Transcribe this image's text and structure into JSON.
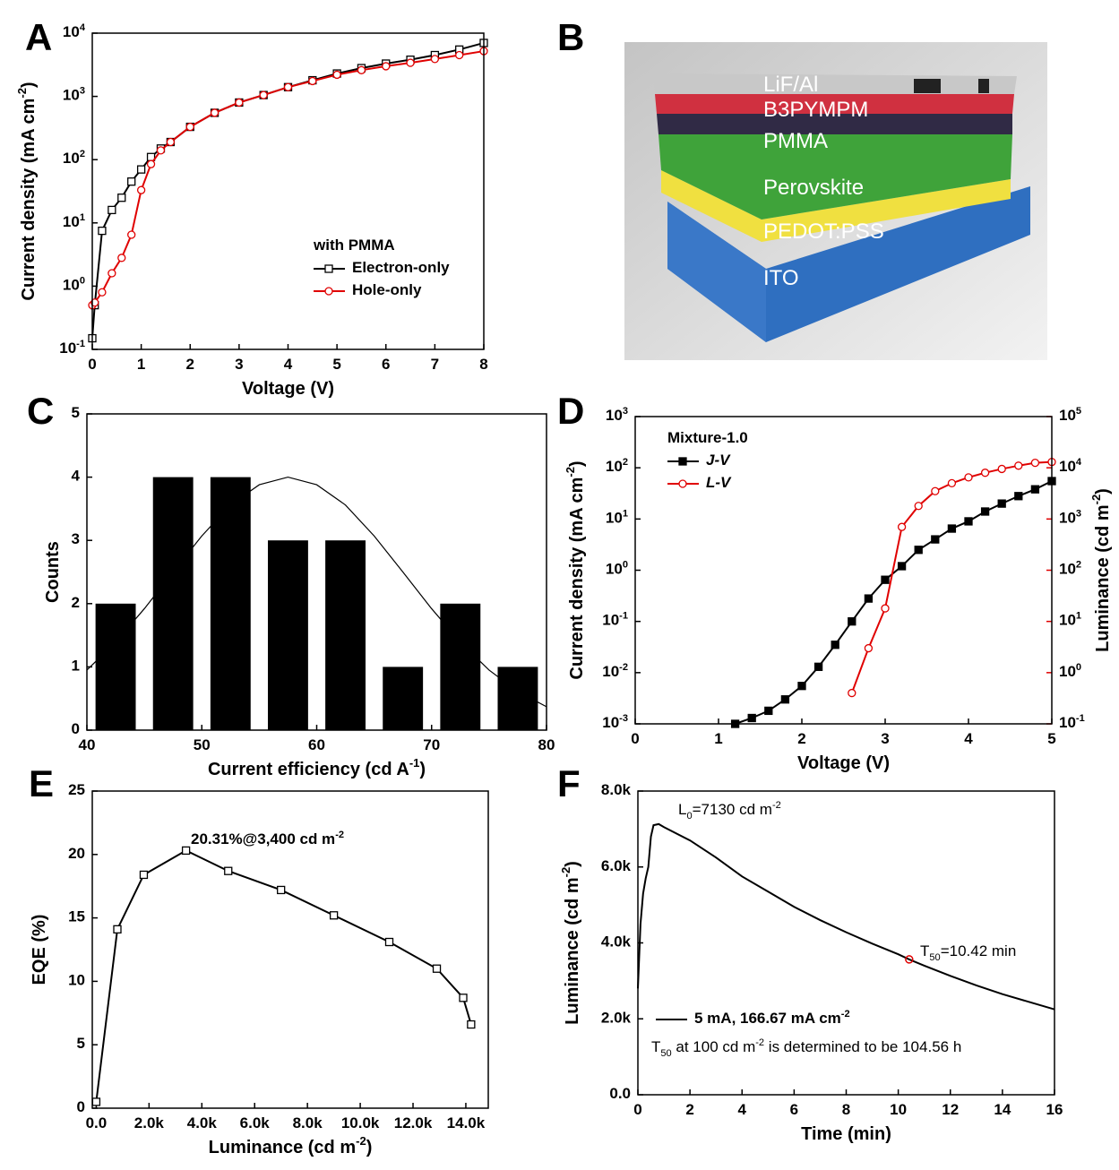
{
  "chart_data": [
    {
      "panel": "A",
      "type": "line",
      "ylog": true,
      "xlabel": "Voltage (V)",
      "ylabel": "Current density (mA cm^{-2})",
      "xlim": [
        0,
        8
      ],
      "xticks": [
        0,
        1,
        2,
        3,
        4,
        5,
        6,
        7,
        8
      ],
      "ylim": [
        0.1,
        10000
      ],
      "yticks": [
        {
          "value": 0.1,
          "label": "10^{-1}"
        },
        {
          "value": 1,
          "label": "10^{0}"
        },
        {
          "value": 10,
          "label": "10^{1}"
        },
        {
          "value": 100,
          "label": "10^{2}"
        },
        {
          "value": 1000,
          "label": "10^{3}"
        },
        {
          "value": 10000,
          "label": "10^{4}"
        }
      ],
      "legend_title": "with PMMA",
      "x": [
        0,
        0.05,
        0.2,
        0.4,
        0.6,
        0.8,
        1.0,
        1.2,
        1.4,
        1.6,
        2,
        2.5,
        3,
        3.5,
        4,
        4.5,
        5,
        5.5,
        6,
        6.5,
        7,
        7.5,
        8
      ],
      "series": [
        {
          "name": "Electron-only",
          "color": "#000000",
          "marker": "square",
          "values": [
            0.15,
            0.5,
            7.5,
            16,
            25,
            45,
            70,
            110,
            150,
            190,
            330,
            550,
            800,
            1050,
            1400,
            1800,
            2300,
            2800,
            3300,
            3800,
            4500,
            5500,
            7000
          ]
        },
        {
          "name": "Hole-only",
          "color": "#e00000",
          "marker": "circle",
          "values": [
            0.5,
            0.55,
            0.8,
            1.6,
            2.8,
            6.5,
            33,
            85,
            140,
            190,
            330,
            550,
            800,
            1050,
            1400,
            1750,
            2200,
            2600,
            3000,
            3400,
            3900,
            4500,
            5200
          ]
        }
      ]
    },
    {
      "panel": "C",
      "type": "histogram",
      "xlabel": "Current efficiency (cd A^{-1})",
      "ylabel": "Counts",
      "xlim": [
        40,
        80
      ],
      "xticks": [
        40,
        50,
        60,
        70,
        80
      ],
      "ylim": [
        0,
        5
      ],
      "yticks": [
        0,
        1,
        2,
        3,
        4,
        5
      ],
      "bins": [
        40,
        45,
        50,
        55,
        60,
        65,
        70,
        75,
        80
      ],
      "counts": [
        2,
        4,
        4,
        3,
        3,
        1,
        2,
        1
      ],
      "color": "#000000",
      "fit": {
        "x": [
          40,
          42.5,
          45,
          47.5,
          50,
          52.5,
          55,
          57.5,
          60,
          62.5,
          65,
          67.5,
          70,
          72.5,
          75,
          77.5,
          80
        ],
        "values": [
          0.95,
          1.39,
          1.92,
          2.5,
          3.07,
          3.56,
          3.88,
          4,
          3.88,
          3.56,
          3.07,
          2.5,
          1.92,
          1.39,
          0.95,
          0.61,
          0.37
        ]
      }
    },
    {
      "panel": "D",
      "type": "line",
      "ylog": true,
      "y2log": true,
      "xlabel": "Voltage (V)",
      "ylabel": "Current density (mA cm^{-2})",
      "y2label": "Luminance (cd m^{-2})",
      "y2color": "#e00000",
      "xlim": [
        0,
        5
      ],
      "xticks": [
        0,
        1,
        2,
        3,
        4,
        5
      ],
      "ylim": [
        0.001,
        1000
      ],
      "yticks": [
        {
          "value": 0.001,
          "label": "10^{-3}"
        },
        {
          "value": 0.01,
          "label": "10^{-2}"
        },
        {
          "value": 0.1,
          "label": "10^{-1}"
        },
        {
          "value": 1,
          "label": "10^{0}"
        },
        {
          "value": 10,
          "label": "10^{1}"
        },
        {
          "value": 100,
          "label": "10^{2}"
        },
        {
          "value": 1000,
          "label": "10^{3}"
        }
      ],
      "y2lim": [
        0.1,
        100000
      ],
      "y2ticks": [
        {
          "value": 0.1,
          "label": "10^{-1}"
        },
        {
          "value": 1,
          "label": "10^{0}"
        },
        {
          "value": 10,
          "label": "10^{1}"
        },
        {
          "value": 100,
          "label": "10^{2}"
        },
        {
          "value": 1000,
          "label": "10^{3}"
        },
        {
          "value": 10000,
          "label": "10^{4}"
        },
        {
          "value": 100000,
          "label": "10^{5}"
        }
      ],
      "legend_title": "Mixture-1.0",
      "series": [
        {
          "name": "J-V",
          "color": "#000000",
          "marker": "filled-square",
          "x": [
            1.2,
            1.4,
            1.6,
            1.8,
            2.0,
            2.2,
            2.4,
            2.6,
            2.8,
            3.0,
            3.2,
            3.4,
            3.6,
            3.8,
            4.0,
            4.2,
            4.4,
            4.6,
            4.8,
            5.0
          ],
          "values": [
            0.001,
            0.0013,
            0.0018,
            0.003,
            0.0055,
            0.013,
            0.035,
            0.1,
            0.28,
            0.65,
            1.2,
            2.5,
            4,
            6.5,
            9,
            14,
            20,
            28,
            38,
            55
          ]
        },
        {
          "name": "L-V",
          "color": "#e00000",
          "marker": "circle",
          "axis": "y2",
          "x": [
            2.6,
            2.8,
            3.0,
            3.2,
            3.4,
            3.6,
            3.8,
            4.0,
            4.2,
            4.4,
            4.6,
            4.8,
            5.0
          ],
          "values": [
            0.4,
            3,
            18,
            700,
            1800,
            3500,
            5000,
            6500,
            8000,
            9500,
            11000,
            12500,
            13000
          ]
        }
      ]
    },
    {
      "panel": "E",
      "type": "line",
      "xlabel": "Luminance (cd m^{-2})",
      "ylabel": "EQE (%)",
      "xlim": [
        -150,
        14850
      ],
      "xticks": [
        {
          "value": 0,
          "label": "0.0"
        },
        {
          "value": 2000,
          "label": "2.0k"
        },
        {
          "value": 4000,
          "label": "4.0k"
        },
        {
          "value": 6000,
          "label": "6.0k"
        },
        {
          "value": 8000,
          "label": "8.0k"
        },
        {
          "value": 10000,
          "label": "10.0k"
        },
        {
          "value": 12000,
          "label": "12.0k"
        },
        {
          "value": 14000,
          "label": "14.0k"
        }
      ],
      "ylim": [
        0,
        25
      ],
      "yticks": [
        0,
        5,
        10,
        15,
        20,
        25
      ],
      "annotation": "20.31%@3,400 cd m^{-2}",
      "x": [
        0,
        800,
        1800,
        3400,
        5000,
        7000,
        9000,
        11100,
        12900,
        13900,
        14200
      ],
      "series": [
        {
          "color": "#000000",
          "marker": "square",
          "values": [
            0.5,
            14.1,
            18.4,
            20.31,
            18.7,
            17.2,
            15.2,
            13.1,
            11.0,
            8.7,
            6.6
          ]
        }
      ]
    },
    {
      "panel": "F",
      "type": "line",
      "xlabel": "Time (min)",
      "ylabel": "Luminance (cd m^{-2})",
      "xlim": [
        0,
        16
      ],
      "xticks": [
        0,
        2,
        4,
        6,
        8,
        10,
        12,
        14,
        16
      ],
      "ylim": [
        0,
        8000
      ],
      "yticks": [
        {
          "value": 0,
          "label": "0.0"
        },
        {
          "value": 2000,
          "label": "2.0k"
        },
        {
          "value": 4000,
          "label": "4.0k"
        },
        {
          "value": 6000,
          "label": "6.0k"
        },
        {
          "value": 8000,
          "label": "8.0k"
        }
      ],
      "annotations": [
        "L_{0}=7130 cd m^{-2}",
        "T_{50}=10.42 min"
      ],
      "note": "T_{50} at 100 cd m^{-2} is determined to be 104.56 h",
      "x": [
        0,
        0.1,
        0.2,
        0.3,
        0.4,
        0.5,
        0.6,
        0.8,
        1,
        2,
        3,
        4,
        5,
        6,
        7,
        8,
        9,
        10,
        10.42,
        11,
        12,
        13,
        14,
        15,
        16
      ],
      "series": [
        {
          "name": "5 mA, 166.67 mA cm^{-2}",
          "color": "#000000",
          "values": [
            2800,
            4500,
            5300,
            5700,
            6000,
            6800,
            7100,
            7130,
            7050,
            6700,
            6250,
            5750,
            5350,
            4950,
            4600,
            4280,
            3980,
            3700,
            3565,
            3400,
            3130,
            2880,
            2650,
            2450,
            2250
          ]
        }
      ]
    }
  ],
  "device": {
    "panel": "B",
    "layers": [
      "LiF/Al",
      "B3PYMPM",
      "PMMA",
      "Perovskite",
      "PEDOT:PSS",
      "ITO"
    ]
  }
}
